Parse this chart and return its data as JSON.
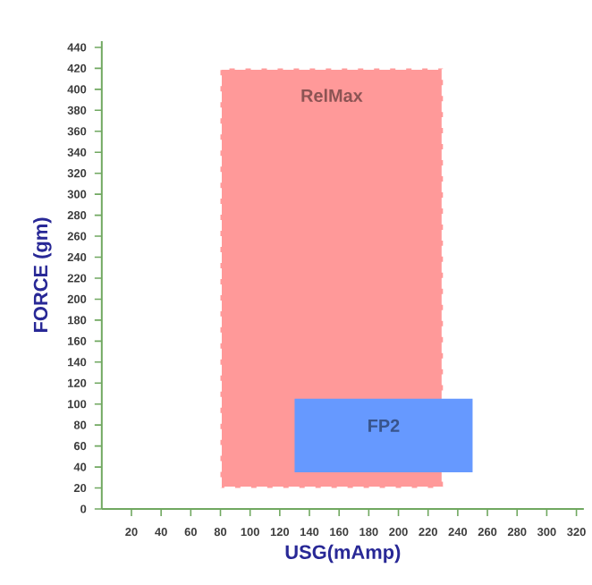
{
  "chart_data": {
    "type": "area",
    "xlabel": "USG(mAmp)",
    "ylabel": "FORCE (gm)",
    "xlim": [
      0,
      325
    ],
    "ylim": [
      0,
      446
    ],
    "xticks": [
      20,
      40,
      60,
      80,
      100,
      120,
      140,
      160,
      180,
      200,
      220,
      240,
      260,
      280,
      300,
      320
    ],
    "yticks": [
      0,
      20,
      40,
      60,
      80,
      100,
      120,
      140,
      160,
      180,
      200,
      220,
      240,
      260,
      280,
      300,
      320,
      340,
      360,
      380,
      400,
      420,
      440
    ],
    "series": [
      {
        "name": "RelMax",
        "color": "#ff9999",
        "line_style": "dashed",
        "x": [
          80,
          80,
          230,
          230
        ],
        "values": [
          20,
          420,
          420,
          20
        ]
      },
      {
        "name": "FP2",
        "color": "#6699ff",
        "line_style": "solid",
        "x": [
          130,
          130,
          250,
          250
        ],
        "values": [
          35,
          105,
          105,
          35
        ]
      }
    ]
  }
}
